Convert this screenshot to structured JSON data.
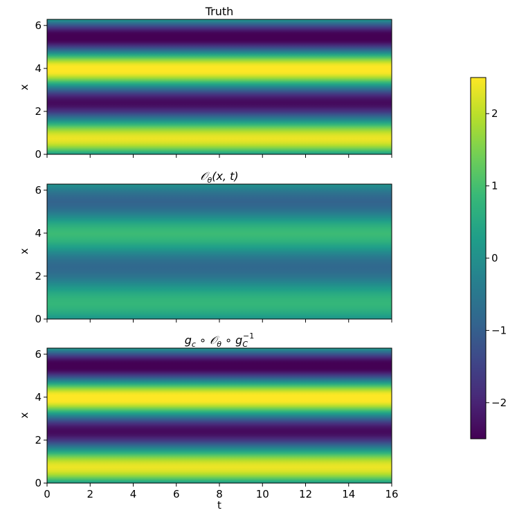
{
  "figure": {
    "colormap": "viridis",
    "viridis_stops": [
      "#440154",
      "#482878",
      "#3e4989",
      "#31688e",
      "#26828e",
      "#1f9e89",
      "#35b779",
      "#6ece58",
      "#b5de2b",
      "#fde725"
    ]
  },
  "chart_data": [
    {
      "type": "heatmap",
      "title": "Truth",
      "xlabel": "",
      "ylabel": "x",
      "xlim": [
        0,
        16
      ],
      "ylim": [
        0,
        6.283
      ],
      "x_ticks": [],
      "y_ticks": [
        "0",
        "2",
        "4",
        "6"
      ],
      "field": "values ≈ 2.5·sin(2x)+0.2·cos(3x), nearly constant in t",
      "amplitude": 2.5,
      "profile_x": [
        0,
        0.785,
        1.57,
        2.356,
        3.142,
        3.927,
        4.712,
        5.498,
        6.283
      ],
      "profile_values": [
        0.2,
        2.4,
        0.0,
        -2.4,
        -0.2,
        2.5,
        0.0,
        -2.5,
        0.2
      ]
    },
    {
      "type": "heatmap",
      "title": "𝒪θ(x,t)",
      "xlabel": "",
      "ylabel": "x",
      "xlim": [
        0,
        16
      ],
      "ylim": [
        0,
        6.283
      ],
      "x_ticks": [],
      "y_ticks": [
        "0",
        "2",
        "4",
        "6"
      ],
      "amplitude": 0.85,
      "profile_x": [
        0,
        0.785,
        1.57,
        2.356,
        3.142,
        3.927,
        4.712,
        5.498,
        6.283
      ],
      "profile_values": [
        0.1,
        0.8,
        0.0,
        -0.8,
        -0.1,
        0.85,
        0.0,
        -0.85,
        0.1
      ]
    },
    {
      "type": "heatmap",
      "title": "g_c ∘ 𝒪θ ∘ g_C^-1",
      "xlabel": "t",
      "ylabel": "x",
      "xlim": [
        0,
        16
      ],
      "ylim": [
        0,
        6.283
      ],
      "x_ticks": [
        "0",
        "2",
        "4",
        "6",
        "8",
        "10",
        "12",
        "14",
        "16"
      ],
      "y_ticks": [
        "0",
        "2",
        "4",
        "6"
      ],
      "amplitude": 2.5,
      "profile_x": [
        0,
        0.785,
        1.57,
        2.356,
        3.142,
        3.927,
        4.712,
        5.498,
        6.283
      ],
      "profile_values": [
        0.2,
        2.4,
        0.0,
        -2.4,
        -0.2,
        2.5,
        0.0,
        -2.5,
        0.2
      ]
    }
  ],
  "colorbar": {
    "vmin": -2.5,
    "vmax": 2.5,
    "ticks": [
      -2,
      -1,
      0,
      1,
      2
    ],
    "tick_labels": [
      "−2",
      "−1",
      "0",
      "1",
      "2"
    ]
  },
  "labels": {
    "panel1_title": "Truth",
    "panel2_title_main": "𝒪",
    "panel2_title_sub": "θ",
    "panel2_title_rest": "(x, t)",
    "panel3_g": "g",
    "panel3_c": "c",
    "panel3_op": " ∘ 𝒪",
    "panel3_theta": "θ",
    "panel3_op2": " ∘ g",
    "panel3_C": "C",
    "panel3_sup": "−1",
    "ylabel": "x",
    "xlabel": "t"
  }
}
